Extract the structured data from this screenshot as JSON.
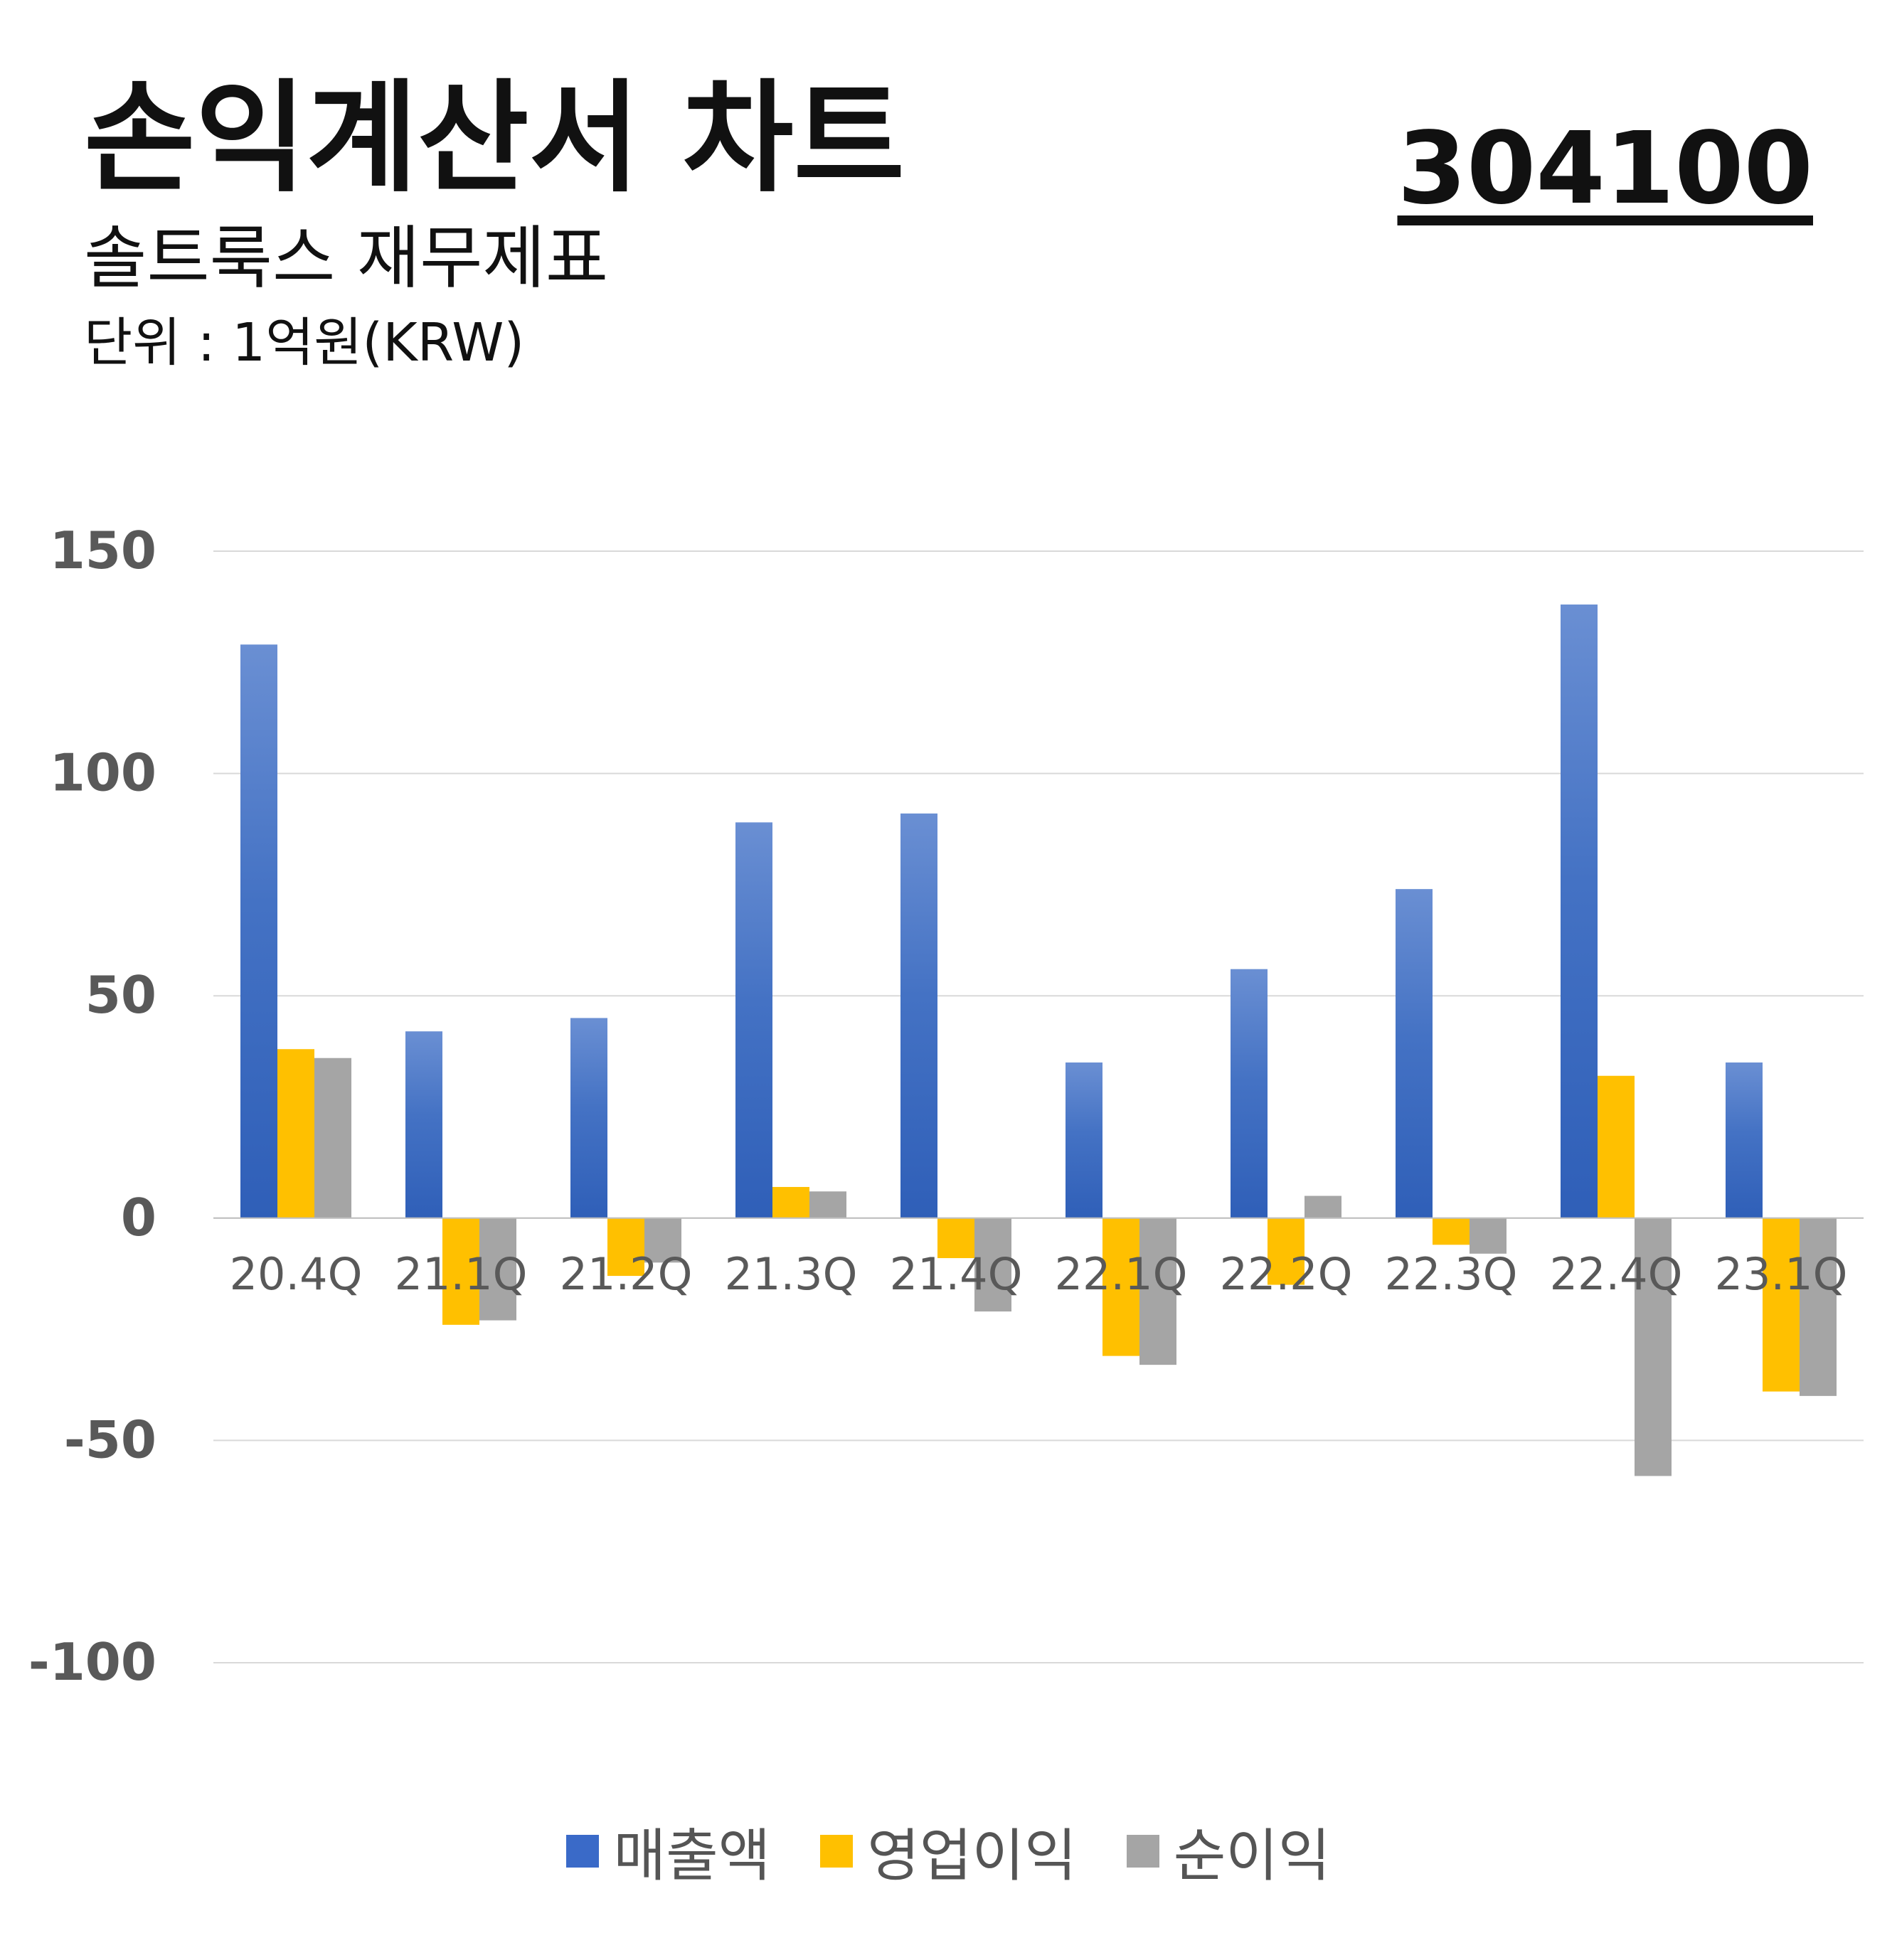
{
  "header": {
    "title": "손익계산서 차트",
    "subtitle": "솔트룩스 재무제표",
    "unit": "단위 : 1억원(KRW)",
    "code": "304100"
  },
  "chart_data": {
    "type": "bar",
    "categories": [
      "20.4Q",
      "21.1Q",
      "21.2Q",
      "21.3Q",
      "21.4Q",
      "22.1Q",
      "22.2Q",
      "22.3Q",
      "22.4Q",
      "23.1Q"
    ],
    "series": [
      {
        "name": "매출액",
        "color": "#3a6ac8",
        "values": [
          129,
          42,
          45,
          89,
          91,
          35,
          56,
          74,
          138,
          35
        ]
      },
      {
        "name": "영업이익",
        "color": "#ffc000",
        "values": [
          38,
          -24,
          -13,
          7,
          -9,
          -31,
          -15,
          -6,
          32,
          -39
        ]
      },
      {
        "name": "순이익",
        "color": "#a5a5a5",
        "values": [
          36,
          -23,
          -10,
          6,
          -21,
          -33,
          5,
          -8,
          -58,
          -40
        ]
      }
    ],
    "ylim": [
      -100,
      150
    ],
    "yticks": [
      150,
      100,
      50,
      0,
      -50,
      -100
    ],
    "grid": true,
    "legend_position": "bottom"
  }
}
